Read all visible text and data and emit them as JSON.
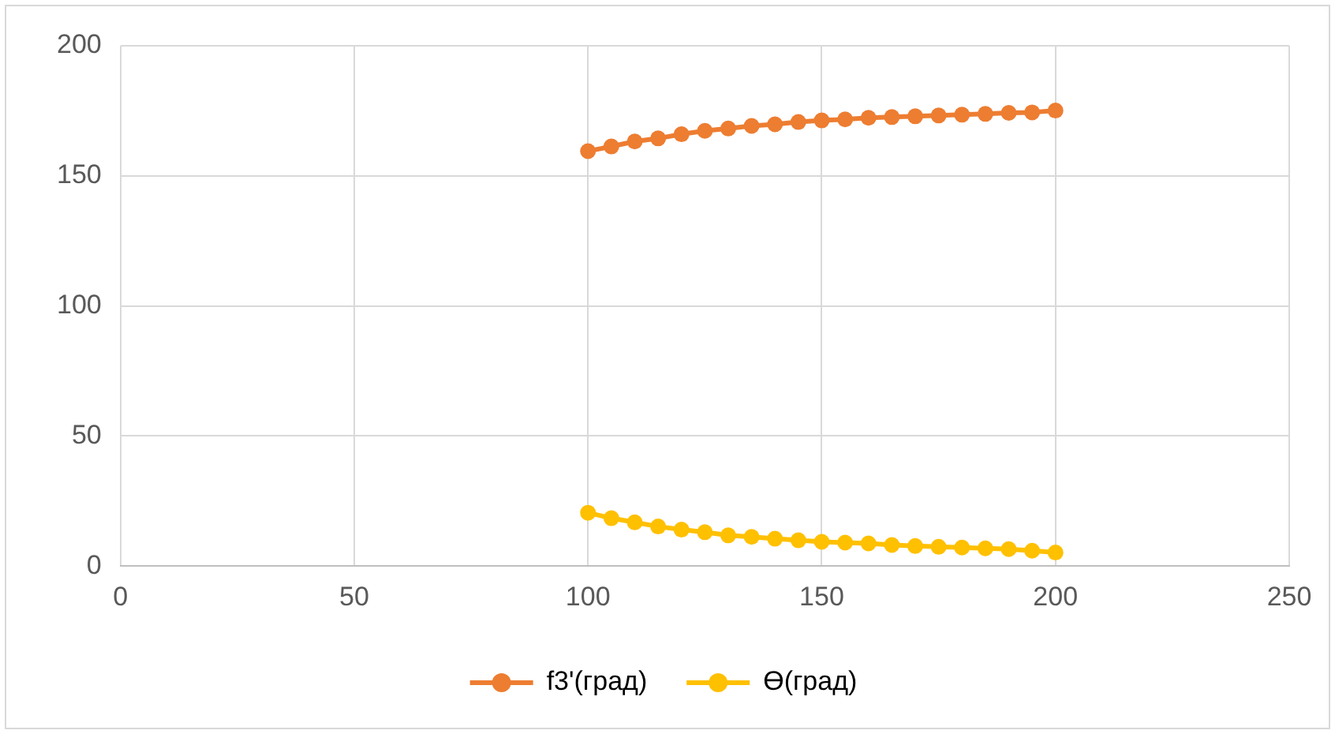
{
  "chart_data": {
    "type": "line",
    "x": [
      100,
      105,
      110,
      115,
      120,
      125,
      130,
      135,
      140,
      145,
      150,
      155,
      160,
      165,
      170,
      175,
      180,
      185,
      190,
      195,
      200
    ],
    "series": [
      {
        "name": "f3'(град)",
        "color": "#ed7d31",
        "values": [
          159.5,
          161.3,
          163.2,
          164.4,
          166.0,
          167.3,
          168.2,
          169.2,
          169.8,
          170.7,
          171.3,
          171.7,
          172.3,
          172.6,
          172.9,
          173.2,
          173.5,
          173.8,
          174.2,
          174.4,
          175.1
        ]
      },
      {
        "name": "ϴ(град)",
        "color": "#ffc000",
        "values": [
          20.5,
          18.4,
          16.8,
          15.2,
          14.0,
          13.0,
          11.8,
          11.2,
          10.5,
          9.9,
          9.3,
          9.0,
          8.7,
          8.1,
          7.7,
          7.4,
          7.1,
          6.8,
          6.5,
          5.9,
          5.2
        ]
      }
    ],
    "xlim": [
      0,
      250
    ],
    "xticks": [
      0,
      50,
      100,
      150,
      200,
      250
    ],
    "ylim": [
      0,
      200
    ],
    "yticks": [
      0,
      50,
      100,
      150,
      200
    ],
    "grid": true,
    "legend": "bottom",
    "marker": "circle",
    "line_style": "solid"
  }
}
